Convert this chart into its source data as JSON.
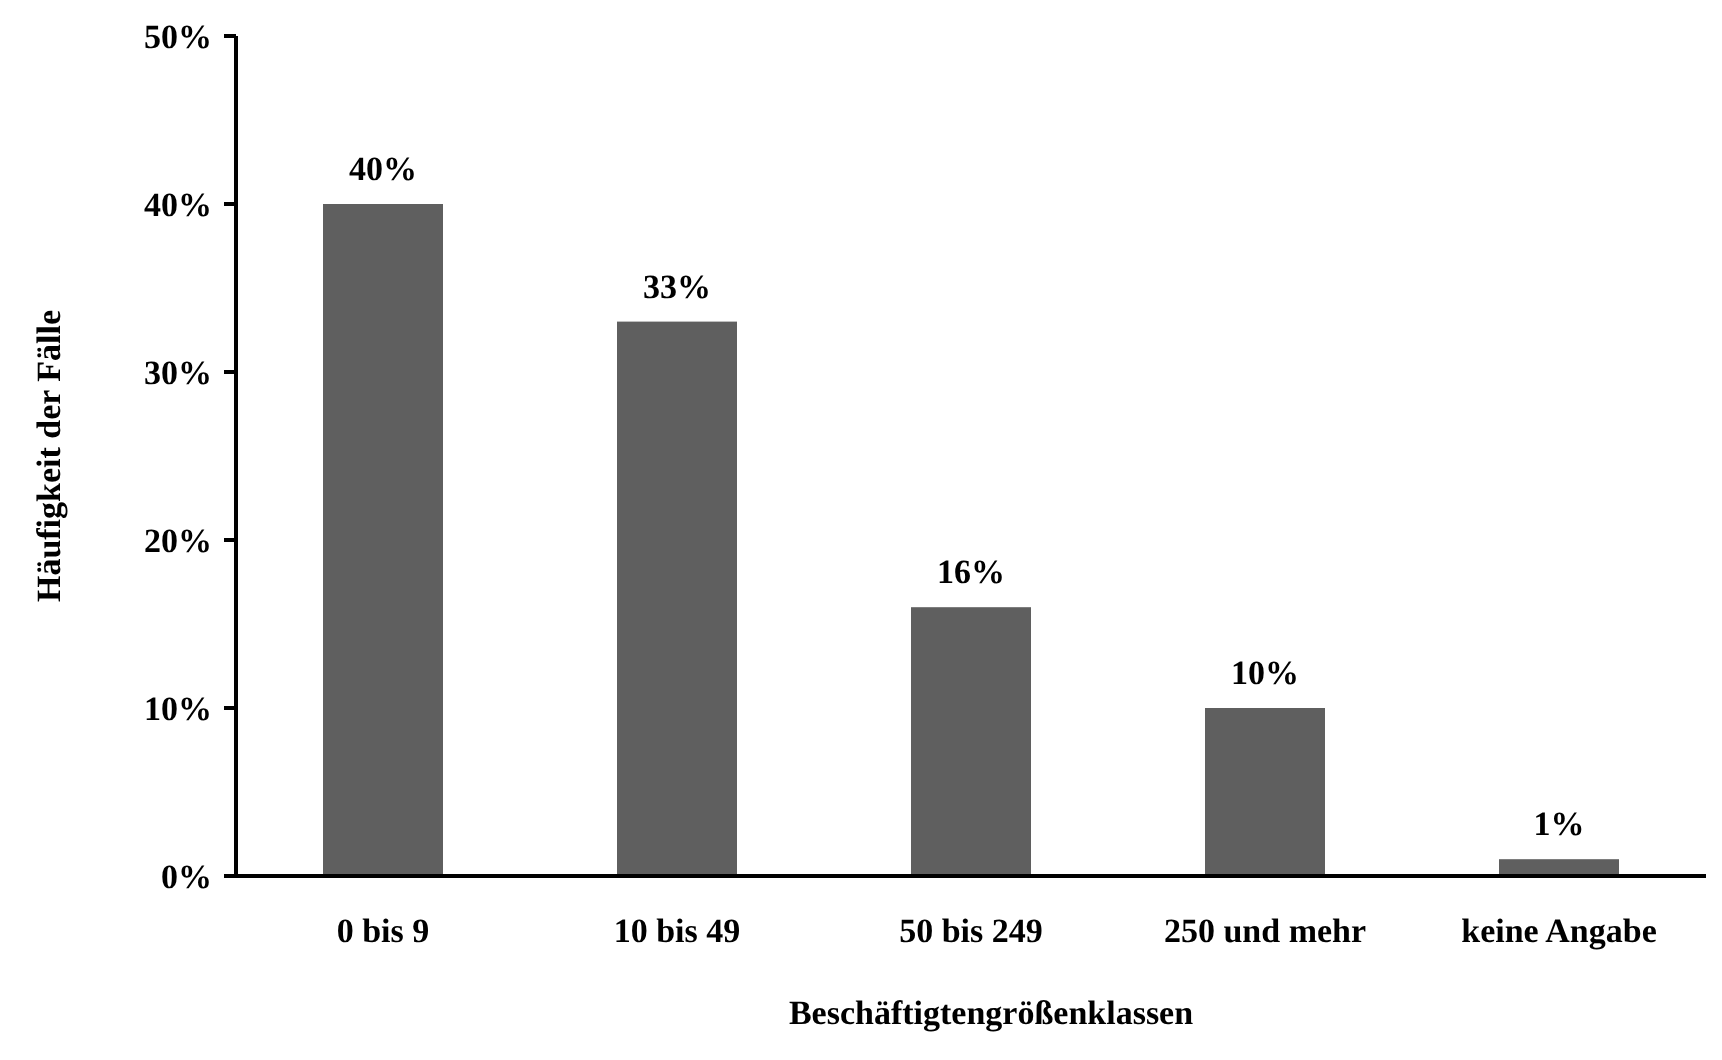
{
  "chart_data": {
    "type": "bar",
    "xlabel": "Beschäftigtengrößenklassen",
    "ylabel": "Häufigkeit der Fälle",
    "categories": [
      "0 bis 9",
      "10 bis 49",
      "50 bis 249",
      "250 und mehr",
      "keine Angabe"
    ],
    "values": [
      40,
      33,
      16,
      10,
      1
    ],
    "value_labels": [
      "40%",
      "33%",
      "16%",
      "10%",
      "1%"
    ],
    "color": "#5f5f5f",
    "ylim": [
      0,
      50
    ],
    "yticks": [
      {
        "value": 0,
        "label": "0%"
      },
      {
        "value": 10,
        "label": "10%"
      },
      {
        "value": 20,
        "label": "20%"
      },
      {
        "value": 30,
        "label": "30%"
      },
      {
        "value": 40,
        "label": "40%"
      },
      {
        "value": 50,
        "label": "50%"
      }
    ]
  }
}
